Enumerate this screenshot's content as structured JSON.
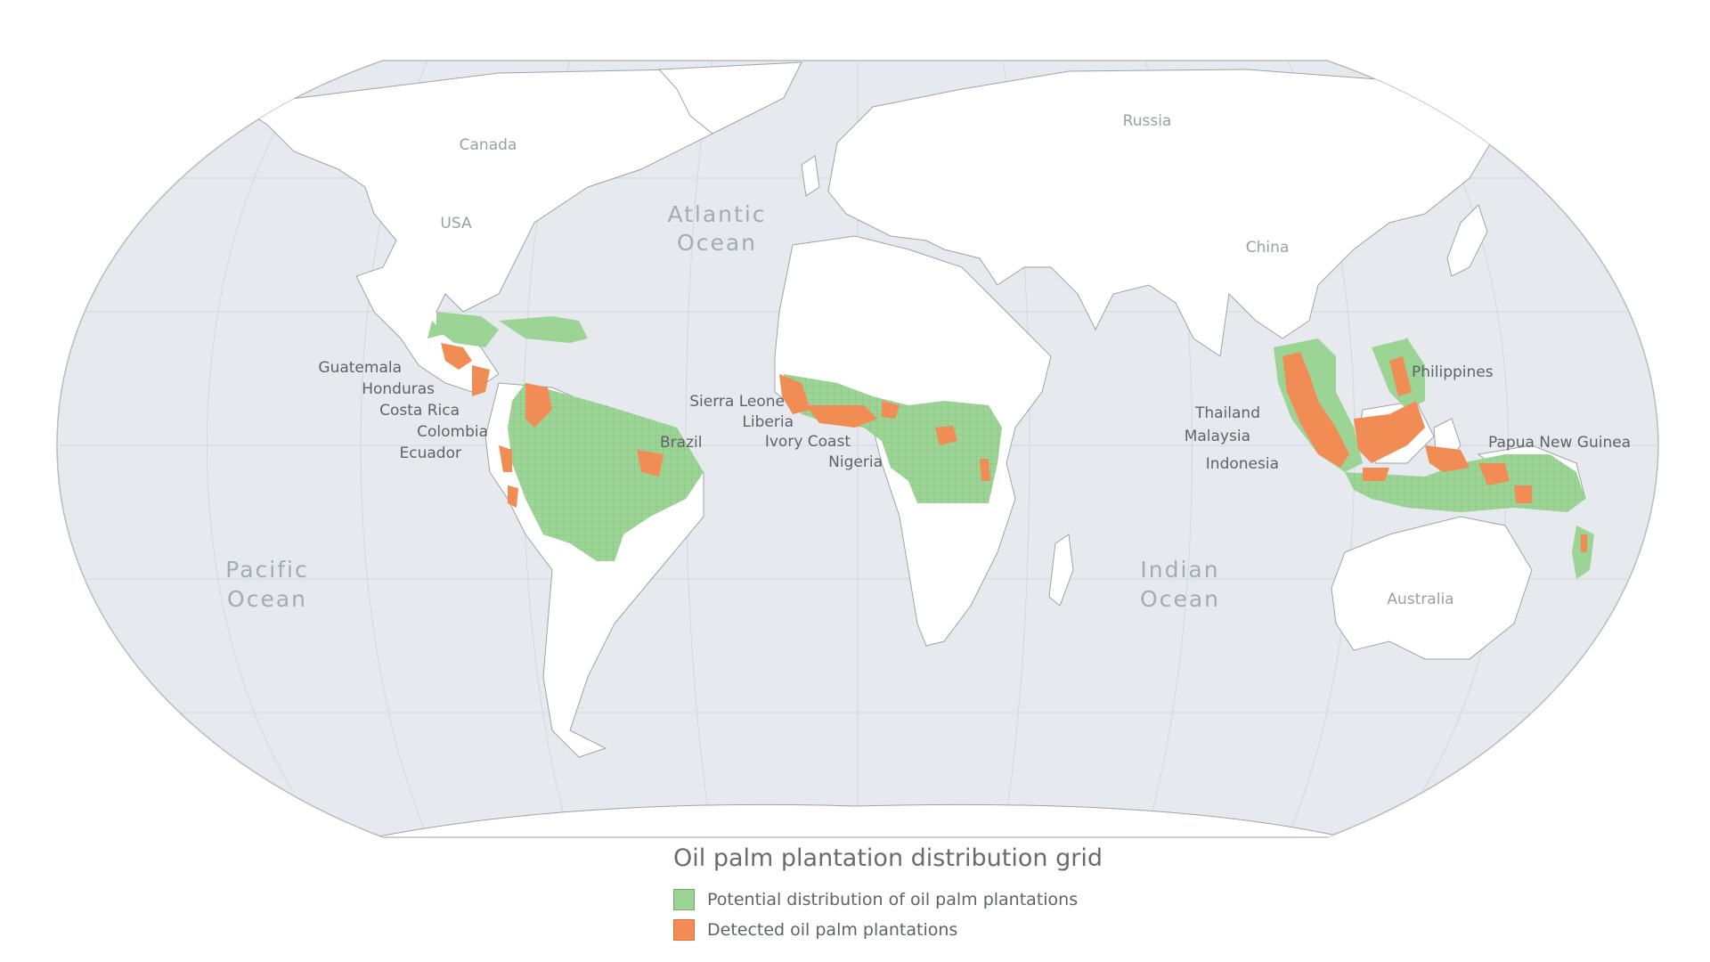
{
  "legend": {
    "title": "Oil palm plantation distribution grid",
    "items": [
      {
        "label": "Potential distribution of oil palm plantations",
        "color": "#9bd494"
      },
      {
        "label": "Detected oil palm plantations",
        "color": "#f28c55"
      }
    ]
  },
  "oceans": {
    "atlantic": [
      "Atlantic",
      "Ocean"
    ],
    "pacific": [
      "Pacific",
      "Ocean"
    ],
    "indian": [
      "Indian",
      "Ocean"
    ]
  },
  "countries": {
    "canada": "Canada",
    "usa": "USA",
    "russia": "Russia",
    "china": "China",
    "australia": "Australia",
    "guatemala": "Guatemala",
    "honduras": "Honduras",
    "costa_rica": "Costa Rica",
    "colombia": "Colombia",
    "ecuador": "Ecuador",
    "brazil": "Brazil",
    "sierra_leone": "Sierra Leone",
    "liberia": "Liberia",
    "ivory_coast": "Ivory Coast",
    "nigeria": "Nigeria",
    "thailand": "Thailand",
    "malaysia": "Malaysia",
    "indonesia": "Indonesia",
    "philippines": "Philippines",
    "papua_new_guinea": "Papua New Guinea"
  },
  "colors": {
    "ocean": "#e6eaee",
    "land": "#ffffff",
    "potential": "#9bd494",
    "detected": "#f28c55"
  }
}
